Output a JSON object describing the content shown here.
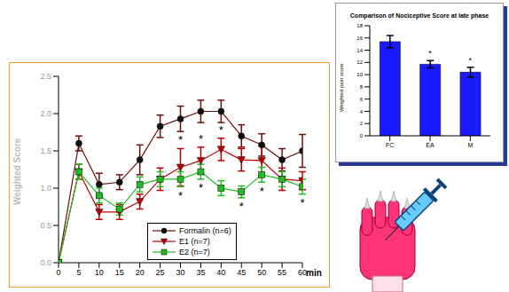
{
  "chart_data": [
    {
      "type": "line",
      "x": [
        0,
        5,
        10,
        15,
        20,
        25,
        30,
        35,
        40,
        45,
        50,
        55,
        60
      ],
      "xlim": [
        0,
        60
      ],
      "xticks": [
        0,
        5,
        10,
        15,
        20,
        25,
        30,
        35,
        40,
        45,
        50,
        55,
        60
      ],
      "ylim": [
        0,
        2.5
      ],
      "yticks": [
        {
          "value": 0,
          "label": "0.0"
        },
        {
          "value": 0.5,
          "label": "0.5"
        },
        {
          "value": 1,
          "label": "1.0"
        },
        {
          "value": 1.5,
          "label": "1.5"
        },
        {
          "value": 2,
          "label": "2.0"
        },
        {
          "value": 2.5,
          "label": "2.5"
        }
      ],
      "xlabel": "min",
      "ylabel": "Weighted Score",
      "legend": "bottom",
      "series": [
        {
          "name": "Formalin (n=6)",
          "color": "#6b0f0f",
          "marker": "circle",
          "values": [
            0,
            1.6,
            1.05,
            1.08,
            1.38,
            1.83,
            1.93,
            2.03,
            2.03,
            1.7,
            1.58,
            1.38,
            1.5
          ],
          "errors": [
            0,
            0.1,
            0.15,
            0.1,
            0.2,
            0.15,
            0.17,
            0.15,
            0.15,
            0.15,
            0.15,
            0.15,
            0.22
          ],
          "significance": [
            null,
            null,
            null,
            null,
            null,
            null,
            null,
            null,
            null,
            null,
            null,
            null,
            null
          ]
        },
        {
          "name": "E1 (n=7)",
          "color": "#c00000",
          "marker": "triangle-down",
          "values": [
            0,
            1.22,
            0.68,
            0.68,
            0.82,
            1.12,
            1.28,
            1.37,
            1.52,
            1.38,
            1.37,
            1.12,
            1.1
          ],
          "errors": [
            0,
            0.1,
            0.1,
            0.1,
            0.1,
            0.15,
            0.25,
            0.18,
            0.15,
            0.15,
            0.2,
            0.15,
            0.12
          ],
          "significance": [
            null,
            null,
            null,
            null,
            null,
            null,
            "*",
            "*",
            "*",
            null,
            null,
            null,
            null
          ]
        },
        {
          "name": "E2 (n=7)",
          "color": "#22bb22",
          "marker": "square",
          "values": [
            0,
            1.22,
            0.9,
            0.72,
            1.05,
            1.12,
            1.12,
            1.22,
            1.0,
            0.95,
            1.18,
            1.12,
            1.02
          ],
          "errors": [
            0,
            0.1,
            0.1,
            0.08,
            0.1,
            0.1,
            0.1,
            0.1,
            0.1,
            0.08,
            0.1,
            0.1,
            0.1
          ],
          "significance": [
            null,
            null,
            null,
            null,
            null,
            null,
            "*",
            "*",
            null,
            "*",
            "*",
            null,
            "*"
          ]
        }
      ]
    },
    {
      "type": "bar",
      "title": "Comparison of Nociceptive Score at late phase",
      "categories": [
        "FC",
        "EA",
        "M"
      ],
      "values": [
        15.4,
        11.7,
        10.4
      ],
      "errors": [
        1.0,
        0.6,
        0.8
      ],
      "significance": [
        null,
        "*",
        "*"
      ],
      "color": "#1a1aff",
      "ylim": [
        0,
        18
      ],
      "yticks": [
        0,
        2,
        4,
        6,
        8,
        10,
        12,
        14,
        16,
        18
      ],
      "ylabel": "Weighted pain score"
    }
  ]
}
